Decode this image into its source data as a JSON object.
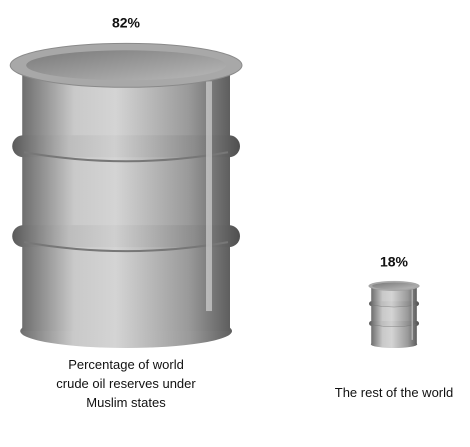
{
  "chart_data": {
    "type": "pictograph",
    "categories": [
      "Percentage of world crude oil reserves under Muslim states",
      "The rest of the world"
    ],
    "values": [
      82,
      18
    ],
    "value_labels": [
      "82%",
      "18%"
    ],
    "color": "#a8a8a8"
  }
}
